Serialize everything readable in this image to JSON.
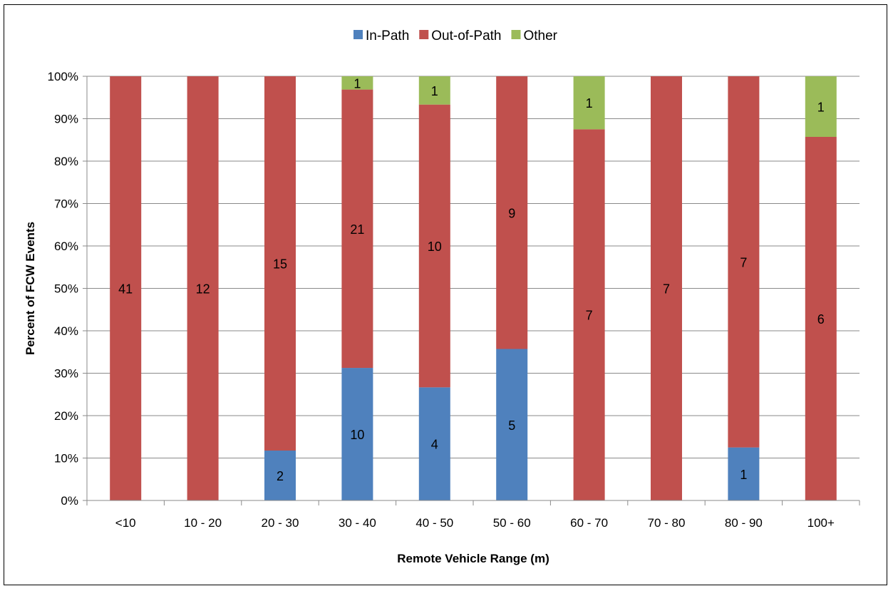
{
  "chart_data": {
    "type": "bar",
    "stacked": true,
    "percent_stacked": true,
    "title": "",
    "xlabel": "Remote Vehicle Range (m)",
    "ylabel": "Percent of FCW Events",
    "ylim": [
      0,
      100
    ],
    "yticks": [
      "0%",
      "10%",
      "20%",
      "30%",
      "40%",
      "50%",
      "60%",
      "70%",
      "80%",
      "90%",
      "100%"
    ],
    "grid": true,
    "legend_position": "top-center",
    "categories": [
      "<10",
      "10 - 20",
      "20 - 30",
      "30 - 40",
      "40 - 50",
      "50 - 60",
      "60 - 70",
      "70 - 80",
      "80 - 90",
      "100+"
    ],
    "series": [
      {
        "name": "In-Path",
        "color": "#4F81BD",
        "values": [
          0,
          0,
          2,
          10,
          4,
          5,
          0,
          0,
          1,
          0
        ]
      },
      {
        "name": "Out-of-Path",
        "color": "#C0504D",
        "values": [
          41,
          12,
          15,
          21,
          10,
          9,
          7,
          7,
          7,
          6
        ]
      },
      {
        "name": "Other",
        "color": "#9BBB59",
        "values": [
          0,
          0,
          0,
          1,
          1,
          0,
          1,
          0,
          0,
          1
        ]
      }
    ]
  }
}
